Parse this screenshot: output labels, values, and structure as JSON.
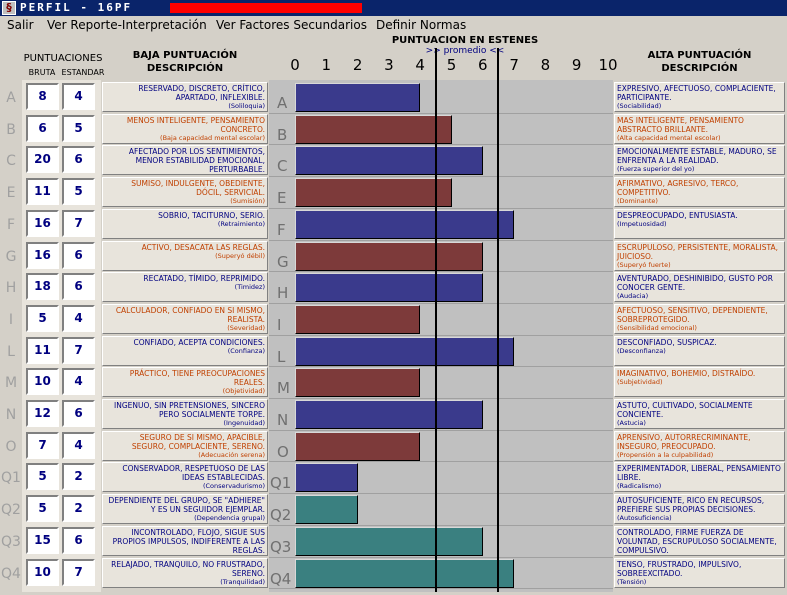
{
  "window": {
    "title": "PERFIL - 16PF"
  },
  "menu": [
    "Salir",
    "Ver Reporte-Interpretación",
    "Ver Factores Secundarios",
    "Definir Normas"
  ],
  "headers": {
    "puntuaciones": "PUNTUACIONES",
    "bruta": "BRUTA",
    "estandar": "ESTANDAR",
    "baja_title": "BAJA PUNTUACIÓN",
    "baja_sub": "DESCRIPCIÓN",
    "chart_title": "PUNTUACION EN ESTENES",
    "chart_promedio": ">> promedio <<",
    "alta_title": "ALTA PUNTUACIÓN",
    "alta_sub": "DESCRIPCIÓN"
  },
  "colors": {
    "blue_bar": "#3a3a8c",
    "red_bar": "#7d3a3a",
    "teal_bar": "#3a8080",
    "desc_blue": "#000080",
    "desc_rust": "#c04000"
  },
  "chart_data": {
    "type": "bar",
    "xlim": [
      0,
      10
    ],
    "ticks": [
      "0",
      "1",
      "2",
      "3",
      "4",
      "5",
      "6",
      "7",
      "8",
      "9",
      "10"
    ],
    "average_band": [
      4.5,
      6.5
    ],
    "categories": [
      "A",
      "B",
      "C",
      "E",
      "F",
      "G",
      "H",
      "I",
      "L",
      "M",
      "N",
      "O",
      "Q1",
      "Q2",
      "Q3",
      "Q4"
    ],
    "values": [
      4,
      5,
      6,
      5,
      7,
      6,
      6,
      4,
      7,
      4,
      6,
      4,
      2,
      2,
      6,
      7
    ],
    "bar_colors": [
      "blue",
      "red",
      "blue",
      "red",
      "blue",
      "red",
      "blue",
      "red",
      "blue",
      "red",
      "blue",
      "red",
      "blue",
      "teal",
      "teal",
      "teal"
    ]
  },
  "rows": [
    {
      "letter": "A",
      "bruta": "8",
      "estandar": "4",
      "low_color": "blue",
      "low": "RESERVADO, DISCRETO, CRÍTICO, APARTADO, INFLEXIBLE.",
      "low_sub": "(Soliloquia)",
      "high_color": "blue",
      "high": "EXPRESIVO, AFECTUOSO, COMPLACIENTE, PARTICIPANTE.",
      "high_sub": "(Sociabilidad)"
    },
    {
      "letter": "B",
      "bruta": "6",
      "estandar": "5",
      "low_color": "rust",
      "low": "MENOS INTELIGENTE, PENSAMIENTO CONCRETO.",
      "low_sub": "(Baja capacidad mental escolar)",
      "high_color": "rust",
      "high": "MAS INTELIGENTE, PENSAMIENTO ABSTRACTO BRILLANTE.",
      "high_sub": "(Alta capacidad mental escolar)"
    },
    {
      "letter": "C",
      "bruta": "20",
      "estandar": "6",
      "low_color": "blue",
      "low": "AFECTADO POR LOS SENTIMIENTOS, MENOR ESTABILIDAD EMOCIONAL, PERTURBABLE.",
      "low_sub": "(Debilidad del yo)",
      "high_color": "blue",
      "high": "EMOCIONALMENTE ESTABLE, MADURO, SE ENFRENTA A LA REALIDAD.",
      "high_sub": "(Fuerza superior del yo)"
    },
    {
      "letter": "E",
      "bruta": "11",
      "estandar": "5",
      "low_color": "rust",
      "low": "SUMISO, INDULGENTE, OBEDIENTE, DÓCIL, SERVICIAL.",
      "low_sub": "(Sumisión)",
      "high_color": "rust",
      "high": "AFIRMATIVO, AGRESIVO, TERCO, COMPETITIVO.",
      "high_sub": "(Dominante)"
    },
    {
      "letter": "F",
      "bruta": "16",
      "estandar": "7",
      "low_color": "blue",
      "low": "SOBRIO, TACITURNO, SERIO.",
      "low_sub": "(Retraimiento)",
      "high_color": "blue",
      "high": "DESPREOCUPADO, ENTUSIASTA.",
      "high_sub": "(Impetuosidad)"
    },
    {
      "letter": "G",
      "bruta": "16",
      "estandar": "6",
      "low_color": "rust",
      "low": "ACTIVO, DESACATA LAS REGLAS.",
      "low_sub": "(Superyó débil)",
      "high_color": "rust",
      "high": "ESCRUPULOSO, PERSISTENTE, MORALISTA, JUICIOSO.",
      "high_sub": "(Superyó fuerte)"
    },
    {
      "letter": "H",
      "bruta": "18",
      "estandar": "6",
      "low_color": "blue",
      "low": "RECATADO, TÍMIDO, REPRIMIDO.",
      "low_sub": "(Timidez)",
      "high_color": "blue",
      "high": "AVENTURADO, DESHINIBIDO, GUSTO POR CONOCER GENTE.",
      "high_sub": "(Audacia)"
    },
    {
      "letter": "I",
      "bruta": "5",
      "estandar": "4",
      "low_color": "rust",
      "low": "CALCULADOR, CONFIADO EN SI MISMO, REALISTA.",
      "low_sub": "(Severidad)",
      "high_color": "rust",
      "high": "AFECTUOSO, SENSITIVO, DEPENDIENTE, SOBREPROTEGIDO.",
      "high_sub": "(Sensibilidad emocional)"
    },
    {
      "letter": "L",
      "bruta": "11",
      "estandar": "7",
      "low_color": "blue",
      "low": "CONFIADO, ACEPTA CONDICIONES.",
      "low_sub": "(Confianza)",
      "high_color": "blue",
      "high": "DESCONFIADO, SUSPICAZ.",
      "high_sub": "(Desconfianza)"
    },
    {
      "letter": "M",
      "bruta": "10",
      "estandar": "4",
      "low_color": "rust",
      "low": "PRÁCTICO, TIENE PREOCUPACIONES REALES.",
      "low_sub": "(Objetividad)",
      "high_color": "rust",
      "high": "IMAGINATIVO, BOHEMIO, DISTRAÍDO.",
      "high_sub": "(Subjetividad)"
    },
    {
      "letter": "N",
      "bruta": "12",
      "estandar": "6",
      "low_color": "blue",
      "low": "INGENUO, SIN PRETENSIONES, SINCERO PERO SOCIALMENTE TORPE.",
      "low_sub": "(Ingenuidad)",
      "high_color": "blue",
      "high": "ASTUTO, CULTIVADO, SOCIALMENTE CONCIENTE.",
      "high_sub": "(Astucia)"
    },
    {
      "letter": "O",
      "bruta": "7",
      "estandar": "4",
      "low_color": "rust",
      "low": "SEGURO DE SI MISMO, APACIBLE, SEGURO, COMPLACIENTE, SERENO.",
      "low_sub": "(Adecuación serena)",
      "high_color": "rust",
      "high": "APRENSIVO, AUTORRECRIMINANTE, INSEGURO, PREOCUPADO.",
      "high_sub": "(Propensión a la culpabilidad)"
    },
    {
      "letter": "Q1",
      "bruta": "5",
      "estandar": "2",
      "low_color": "blue",
      "low": "CONSERVADOR, RESPETUOSO DE LAS IDEAS ESTABLECIDAS.",
      "low_sub": "(Conservadurismo)",
      "high_color": "blue",
      "high": "EXPERIMENTADOR, LIBERAL, PENSAMIENTO LIBRE.",
      "high_sub": "(Radicalismo)"
    },
    {
      "letter": "Q2",
      "bruta": "5",
      "estandar": "2",
      "low_color": "blue",
      "low": "DEPENDIENTE DEL GRUPO, SE \"ADHIERE\" Y ES UN SEGUIDOR EJEMPLAR.",
      "low_sub": "(Dependencia grupal)",
      "high_color": "blue",
      "high": "AUTOSUFICIENTE, RICO EN RECURSOS, PREFIERE SUS PROPIAS DECISIONES.",
      "high_sub": "(Autosuficiencia)"
    },
    {
      "letter": "Q3",
      "bruta": "15",
      "estandar": "6",
      "low_color": "blue",
      "low": "INCONTROLADO, FLOJO, SIGUE SUS PROPIOS IMPULSOS, INDIFERENTE A LAS REGLAS.",
      "low_sub": "(Indiferencia)",
      "high_color": "blue",
      "high": "CONTROLADO, FIRME FUERZA DE VOLUNTAD, ESCRUPULOSO SOCIALMENTE, COMPULSIVO.",
      "high_sub": "(Control)"
    },
    {
      "letter": "Q4",
      "bruta": "10",
      "estandar": "7",
      "low_color": "blue",
      "low": "RELAJADO, TRANQUILO, NO FRUSTRADO, SERENO.",
      "low_sub": "(Tranquilidad)",
      "high_color": "blue",
      "high": "TENSO, FRUSTRADO, IMPULSIVO, SOBREEXCITADO.",
      "high_sub": "(Tensión)"
    }
  ]
}
